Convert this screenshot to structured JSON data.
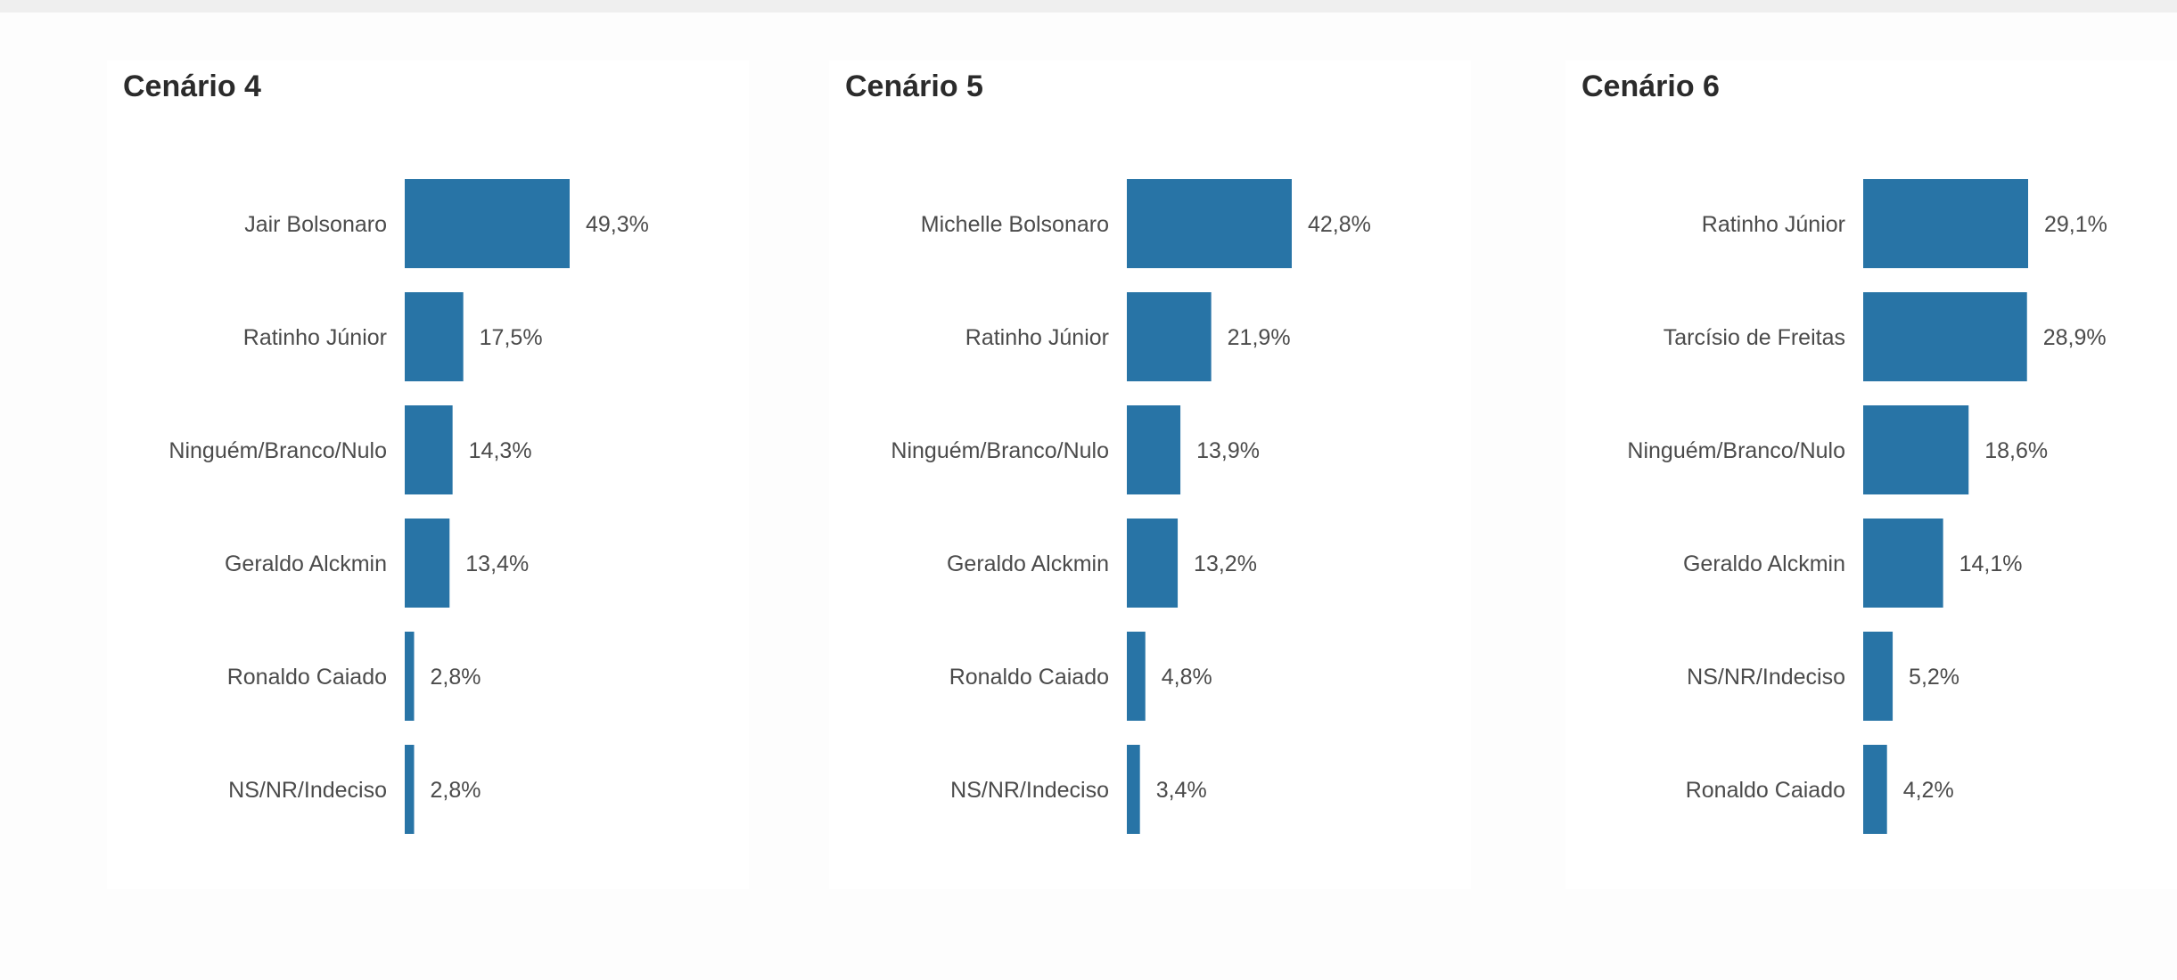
{
  "colors": {
    "bar": "#2874a6",
    "text": "#4b4b4b",
    "title": "#2b2b2b"
  },
  "chart_data": [
    {
      "type": "bar",
      "orientation": "horizontal",
      "title": "Cenário 4",
      "categories": [
        "Jair Bolsonaro",
        "Ratinho Júnior",
        "Ninguém/Branco/Nulo",
        "Geraldo Alckmin",
        "Ronaldo Caiado",
        "NS/NR/Indeciso"
      ],
      "values": [
        49.3,
        17.5,
        14.3,
        13.4,
        2.8,
        2.8
      ],
      "value_labels": [
        "49,3%",
        "17,5%",
        "14,3%",
        "13,4%",
        "2,8%",
        "2,8%"
      ],
      "xlim": [
        0,
        49.3
      ],
      "grid": false,
      "legend": "none"
    },
    {
      "type": "bar",
      "orientation": "horizontal",
      "title": "Cenário 5",
      "categories": [
        "Michelle Bolsonaro",
        "Ratinho Júnior",
        "Ninguém/Branco/Nulo",
        "Geraldo Alckmin",
        "Ronaldo Caiado",
        "NS/NR/Indeciso"
      ],
      "values": [
        42.8,
        21.9,
        13.9,
        13.2,
        4.8,
        3.4
      ],
      "value_labels": [
        "42,8%",
        "21,9%",
        "13,9%",
        "13,2%",
        "4,8%",
        "3,4%"
      ],
      "xlim": [
        0,
        42.8
      ],
      "grid": false,
      "legend": "none"
    },
    {
      "type": "bar",
      "orientation": "horizontal",
      "title": "Cenário 6",
      "categories": [
        "Ratinho Júnior",
        "Tarcísio de Freitas",
        "Ninguém/Branco/Nulo",
        "Geraldo Alckmin",
        "NS/NR/Indeciso",
        "Ronaldo Caiado"
      ],
      "values": [
        29.1,
        28.9,
        18.6,
        14.1,
        5.2,
        4.2
      ],
      "value_labels": [
        "29,1%",
        "28,9%",
        "18,6%",
        "14,1%",
        "5,2%",
        "4,2%"
      ],
      "xlim": [
        0,
        29.1
      ],
      "grid": false,
      "legend": "none"
    }
  ]
}
